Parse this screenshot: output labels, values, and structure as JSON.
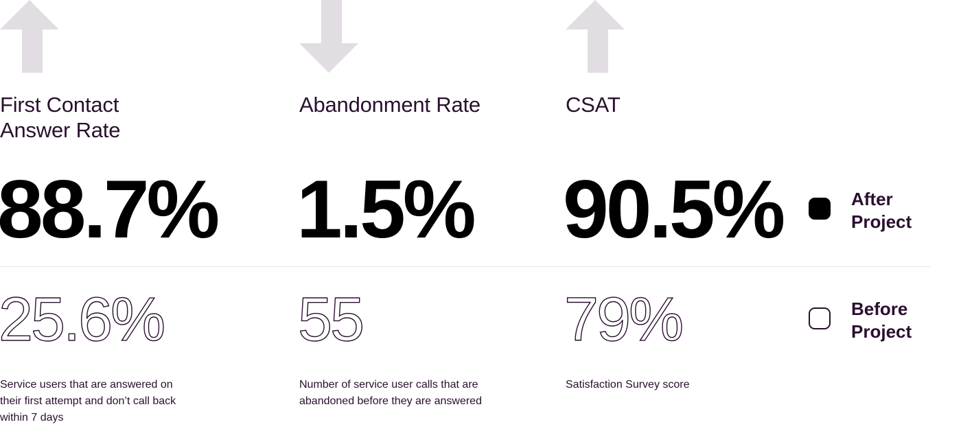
{
  "colors": {
    "arrow": "#e2dde3",
    "text_primary": "#2a0f2e",
    "after_value": "#000000",
    "divider": "#e6e3e6"
  },
  "metrics": [
    {
      "direction": "up",
      "arrow_icon": "arrow-up-icon",
      "title": "First Contact\nAnswer Rate",
      "after": "88.7%",
      "before": "25.6%",
      "description": "Service users that are answered on their first attempt and don’t call back within 7 days"
    },
    {
      "direction": "down",
      "arrow_icon": "arrow-down-icon",
      "title": "Abandonment Rate",
      "after": "1.5%",
      "before": "55",
      "description": "Number of service user calls that are abandoned before they are answered"
    },
    {
      "direction": "up",
      "arrow_icon": "arrow-up-icon",
      "title": "CSAT",
      "after": "90.5%",
      "before": "79%",
      "description": "Satisfaction Survey score"
    }
  ],
  "legend": {
    "after_label": "After\nProject",
    "before_label": "Before\nProject"
  }
}
